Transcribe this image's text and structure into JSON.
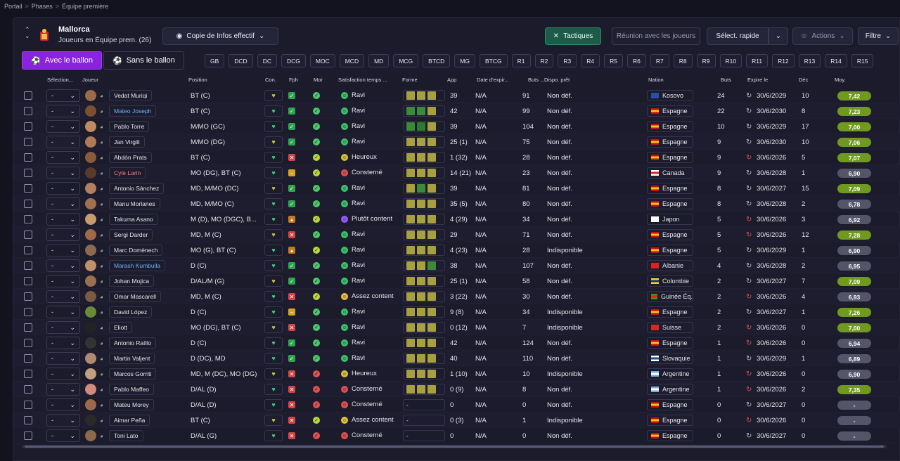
{
  "breadcrumb": [
    "Portail",
    "Phases",
    "Équipe première"
  ],
  "club": {
    "name": "Mallorca",
    "subtitle": "Joueurs en Équipe prem. (26)"
  },
  "toolbar": {
    "view_label": "Copie de Infos effectif",
    "tactics_label": "Tactiques",
    "meeting_label": "Réunion avec les joueurs",
    "quick_select_label": "Sélect. rapide",
    "actions_label": "Actions",
    "filter_label": "Filtre"
  },
  "tabs": {
    "with_ball": "Avec le ballon",
    "without_ball": "Sans le ballon"
  },
  "position_chips": [
    "GB",
    "DCD",
    "DC",
    "DCG",
    "MOC",
    "MCD",
    "MD",
    "MCG",
    "BTCD",
    "MG",
    "BTCG",
    "R1",
    "R2",
    "R3",
    "R4",
    "R5",
    "R6",
    "R7",
    "R8",
    "R9",
    "R10",
    "R11",
    "R12",
    "R13",
    "R14",
    "R15"
  ],
  "columns": {
    "selection": "Sélection...",
    "player": "Joueur",
    "position": "Position",
    "con": "Con.",
    "fph": "Fph",
    "mor": "Mor",
    "satisfaction": "Satisfaction temps ...",
    "form": "Forme",
    "apps": "App",
    "expiry_date": "Date d'expir...",
    "goals_short": "Buts ...",
    "loan": "Dispo. prêt",
    "nation": "Nation",
    "goals": "Buts",
    "expires": "Expire le",
    "dec": "Déc",
    "avg": "Moy."
  },
  "players": [
    {
      "sel": "-",
      "name": "Vedat Muriqi",
      "pos": "BT (C)",
      "apps": "39",
      "exp": "N/A",
      "g1": "91",
      "loan": "Non déf.",
      "nation": "Kosovo",
      "goals": "24",
      "expire": "30/6/2029",
      "dec": "10",
      "avg": "7,42",
      "sat": "Ravi"
    },
    {
      "sel": "-",
      "name": "Mateo Joseph",
      "pos": "BT (C)",
      "apps": "42",
      "exp": "N/A",
      "g1": "99",
      "loan": "Non déf.",
      "nation": "Espagne",
      "goals": "22",
      "expire": "30/6/2030",
      "dec": "8",
      "avg": "7,23",
      "sat": "Ravi"
    },
    {
      "sel": "-",
      "name": "Pablo Torre",
      "pos": "M/MO (GC)",
      "apps": "39",
      "exp": "N/A",
      "g1": "104",
      "loan": "Non déf.",
      "nation": "Espagne",
      "goals": "10",
      "expire": "30/6/2029",
      "dec": "17",
      "avg": "7,00",
      "sat": "Ravi"
    },
    {
      "sel": "-",
      "name": "Jan Virgili",
      "pos": "M/MO (DG)",
      "apps": "25 (1)",
      "exp": "N/A",
      "g1": "75",
      "loan": "Non déf.",
      "nation": "Espagne",
      "goals": "9",
      "expire": "30/6/2030",
      "dec": "10",
      "avg": "7,06",
      "sat": "Ravi"
    },
    {
      "sel": "-",
      "name": "Abdón Prats",
      "pos": "BT (C)",
      "apps": "1 (32)",
      "exp": "N/A",
      "g1": "28",
      "loan": "Non déf.",
      "nation": "Espagne",
      "goals": "9",
      "expire": "30/6/2026",
      "dec": "5",
      "avg": "7,07",
      "sat": "Heureux"
    },
    {
      "sel": "-",
      "name": "Cyle Larin",
      "pos": "MO (DG), BT (C)",
      "apps": "14 (21)",
      "exp": "N/A",
      "g1": "23",
      "loan": "Non déf.",
      "nation": "Canada",
      "goals": "9",
      "expire": "30/6/2028",
      "dec": "1",
      "avg": "6,90",
      "sat": "Consterné"
    },
    {
      "sel": "-",
      "name": "Antonio Sánchez",
      "pos": "MD, M/MO (DC)",
      "apps": "39",
      "exp": "N/A",
      "g1": "81",
      "loan": "Non déf.",
      "nation": "Espagne",
      "goals": "8",
      "expire": "30/6/2027",
      "dec": "15",
      "avg": "7,09",
      "sat": "Ravi"
    },
    {
      "sel": "-",
      "name": "Manu Morlanes",
      "pos": "MD, M/MO (C)",
      "apps": "35 (5)",
      "exp": "N/A",
      "g1": "80",
      "loan": "Non déf.",
      "nation": "Espagne",
      "goals": "8",
      "expire": "30/6/2028",
      "dec": "2",
      "avg": "6,78",
      "sat": "Ravi"
    },
    {
      "sel": "-",
      "name": "Takuma Asano",
      "pos": "M (D), MO (DGC), B...",
      "apps": "4 (29)",
      "exp": "N/A",
      "g1": "34",
      "loan": "Non déf.",
      "nation": "Japon",
      "goals": "5",
      "expire": "30/6/2026",
      "dec": "3",
      "avg": "6,92",
      "sat": "Plutôt content"
    },
    {
      "sel": "-",
      "name": "Sergi Darder",
      "pos": "MD, M (C)",
      "apps": "29",
      "exp": "N/A",
      "g1": "71",
      "loan": "Non déf.",
      "nation": "Espagne",
      "goals": "5",
      "expire": "30/6/2026",
      "dec": "12",
      "avg": "7,28",
      "sat": "Ravi"
    },
    {
      "sel": "-",
      "name": "Marc Domènech",
      "pos": "MO (G), BT (C)",
      "apps": "4 (23)",
      "exp": "N/A",
      "g1": "28",
      "loan": "Indisponible",
      "nation": "Espagne",
      "goals": "5",
      "expire": "30/6/2029",
      "dec": "1",
      "avg": "6,90",
      "sat": "Ravi"
    },
    {
      "sel": "-",
      "name": "Marash Kumbulla",
      "pos": "D (C)",
      "apps": "38",
      "exp": "N/A",
      "g1": "107",
      "loan": "Non déf.",
      "nation": "Albanie",
      "goals": "4",
      "expire": "30/6/2028",
      "dec": "2",
      "avg": "6,95",
      "sat": "Ravi"
    },
    {
      "sel": "-",
      "name": "Johan Mojica",
      "pos": "D/AL/M (G)",
      "apps": "25 (1)",
      "exp": "N/A",
      "g1": "58",
      "loan": "Non déf.",
      "nation": "Colombie",
      "goals": "2",
      "expire": "30/6/2027",
      "dec": "7",
      "avg": "7,09",
      "sat": "Ravi"
    },
    {
      "sel": "-",
      "name": "Omar Mascarell",
      "pos": "MD, M (C)",
      "apps": "3 (22)",
      "exp": "N/A",
      "g1": "30",
      "loan": "Non déf.",
      "nation": "Guinée Éq.",
      "goals": "2",
      "expire": "30/6/2026",
      "dec": "4",
      "avg": "6,93",
      "sat": "Assez content"
    },
    {
      "sel": "-",
      "name": "David López",
      "pos": "D (C)",
      "apps": "9 (8)",
      "exp": "N/A",
      "g1": "34",
      "loan": "Indisponible",
      "nation": "Espagne",
      "goals": "2",
      "expire": "30/6/2027",
      "dec": "1",
      "avg": "7,26",
      "sat": "Ravi"
    },
    {
      "sel": "-",
      "name": "Eliott",
      "pos": "MO (DG), BT (C)",
      "apps": "0 (12)",
      "exp": "N/A",
      "g1": "7",
      "loan": "Indisponible",
      "nation": "Suisse",
      "goals": "2",
      "expire": "30/6/2026",
      "dec": "0",
      "avg": "7,00",
      "sat": "Ravi"
    },
    {
      "sel": "-",
      "name": "Antonio Raíllo",
      "pos": "D (C)",
      "apps": "42",
      "exp": "N/A",
      "g1": "124",
      "loan": "Non déf.",
      "nation": "Espagne",
      "goals": "1",
      "expire": "30/6/2026",
      "dec": "0",
      "avg": "6,94",
      "sat": "Ravi"
    },
    {
      "sel": "-",
      "name": "Martin Valjent",
      "pos": "D (DC), MD",
      "apps": "40",
      "exp": "N/A",
      "g1": "110",
      "loan": "Non déf.",
      "nation": "Slovaquie",
      "goals": "1",
      "expire": "30/6/2029",
      "dec": "1",
      "avg": "6,89",
      "sat": "Ravi"
    },
    {
      "sel": "-",
      "name": "Marcos Gorriti",
      "pos": "MD, M (DC), MO (DG)",
      "apps": "1 (10)",
      "exp": "N/A",
      "g1": "10",
      "loan": "Indisponible",
      "nation": "Argentine",
      "goals": "1",
      "expire": "30/6/2026",
      "dec": "0",
      "avg": "6,90",
      "sat": "Heureux"
    },
    {
      "sel": "-",
      "name": "Pablo Maffeo",
      "pos": "D/AL (D)",
      "apps": "0 (9)",
      "exp": "N/A",
      "g1": "8",
      "loan": "Non déf.",
      "nation": "Argentine",
      "goals": "1",
      "expire": "30/6/2026",
      "dec": "2",
      "avg": "7,35",
      "sat": "Consterné"
    },
    {
      "sel": "-",
      "name": "Mateu Morey",
      "pos": "D/AL (D)",
      "apps": "0",
      "exp": "N/A",
      "g1": "0",
      "loan": "Non déf.",
      "nation": "Espagne",
      "goals": "0",
      "expire": "30/6/2027",
      "dec": "0",
      "avg": "-",
      "sat": "Consterné"
    },
    {
      "sel": "-",
      "name": "Aimar Peña",
      "pos": "BT (C)",
      "apps": "0 (3)",
      "exp": "N/A",
      "g1": "1",
      "loan": "Indisponible",
      "nation": "Espagne",
      "goals": "0",
      "expire": "30/6/2026",
      "dec": "0",
      "avg": "-",
      "sat": "Assez content"
    },
    {
      "sel": "-",
      "name": "Toni Lato",
      "pos": "D/AL (G)",
      "apps": "0",
      "exp": "N/A",
      "g1": "0",
      "loan": "Non déf.",
      "nation": "Espagne",
      "goals": "0",
      "expire": "30/6/2027",
      "dec": "0",
      "avg": "-",
      "sat": "Consterné"
    }
  ],
  "colors": {
    "accent": "#8a22e0",
    "tactics": "#1d5a48",
    "avg_green": "#6f9a1f",
    "avg_grey": "#55556a"
  }
}
